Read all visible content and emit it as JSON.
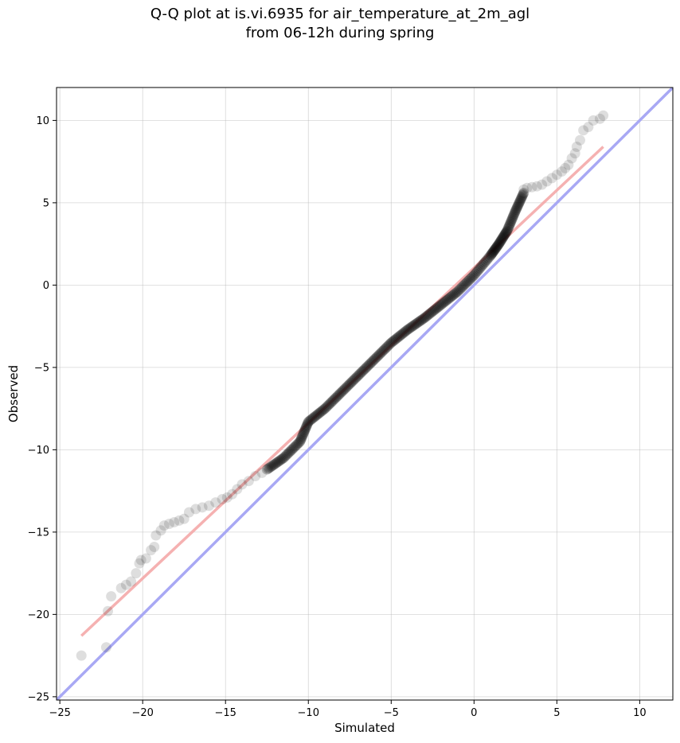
{
  "chart_data": {
    "type": "scatter",
    "title_lines": [
      "Q-Q plot at is.vi.6935 for air_temperature_at_2m_agl",
      "from 06-12h during spring"
    ],
    "xlabel": "Simulated",
    "ylabel": "Observed",
    "xlim": [
      -25.2,
      12
    ],
    "ylim": [
      -25.2,
      12
    ],
    "x_ticks": [
      -25,
      -20,
      -15,
      -10,
      -5,
      0,
      5,
      10
    ],
    "y_ticks": [
      -25,
      -20,
      -15,
      -10,
      -5,
      0,
      5,
      10
    ],
    "x_tick_labels": [
      "−25",
      "−20",
      "−15",
      "−10",
      "−5",
      "0",
      "5",
      "10"
    ],
    "y_tick_labels": [
      "−25",
      "−20",
      "−15",
      "−10",
      "−5",
      "0",
      "5",
      "10"
    ],
    "grid": true,
    "point_color": "#000000",
    "identity_line": {
      "color": "#a8a8f4",
      "from": [
        -25.2,
        -25.2
      ],
      "to": [
        12,
        12
      ]
    },
    "fit_line": {
      "color": "#f4a8a8",
      "from": [
        -23.7,
        -21.3
      ],
      "to": [
        7.8,
        8.4
      ]
    },
    "outer_points": {
      "x": [
        -23.7,
        -22.2,
        -22.1,
        -21.9,
        -21.3,
        -21.0,
        -20.7,
        -20.4,
        -20.2,
        -20.1,
        -19.8,
        -19.5,
        -19.3,
        -19.2,
        -18.9,
        -18.7,
        -18.4,
        -18.1,
        -17.8,
        -17.5,
        -17.2,
        -16.8,
        -16.4,
        -16.0,
        -15.6,
        -15.2,
        -14.9,
        -14.6,
        -14.3,
        -14.0,
        -13.6,
        -13.2,
        -12.8,
        3.0,
        3.2,
        3.5,
        3.8,
        4.1,
        4.4,
        4.7,
        5.0,
        5.3,
        5.5,
        5.7,
        5.9,
        6.1,
        6.2,
        6.4,
        6.6,
        6.9,
        7.2,
        7.6,
        7.8
      ],
      "y": [
        -22.5,
        -22.0,
        -19.8,
        -18.9,
        -18.4,
        -18.2,
        -18.0,
        -17.5,
        -16.9,
        -16.7,
        -16.6,
        -16.1,
        -15.9,
        -15.2,
        -14.9,
        -14.6,
        -14.5,
        -14.4,
        -14.3,
        -14.2,
        -13.8,
        -13.6,
        -13.5,
        -13.4,
        -13.2,
        -13.0,
        -12.9,
        -12.7,
        -12.4,
        -12.1,
        -11.9,
        -11.6,
        -11.4,
        5.8,
        5.9,
        5.95,
        6.0,
        6.1,
        6.3,
        6.5,
        6.7,
        6.9,
        7.1,
        7.3,
        7.7,
        8.0,
        8.4,
        8.8,
        9.4,
        9.6,
        10.0,
        10.1,
        10.3
      ]
    },
    "core_points": {
      "x": [
        -12.5,
        -11.5,
        -10.5,
        -10.0,
        -9.0,
        -8.0,
        -7.0,
        -6.0,
        -5.0,
        -4.0,
        -3.0,
        -2.0,
        -1.0,
        0.0,
        1.0,
        1.5,
        2.0,
        2.5,
        3.0
      ],
      "y": [
        -11.2,
        -10.5,
        -9.5,
        -8.3,
        -7.5,
        -6.5,
        -5.5,
        -4.5,
        -3.5,
        -2.7,
        -2.0,
        -1.2,
        -0.4,
        0.6,
        1.8,
        2.5,
        3.3,
        4.5,
        5.6
      ]
    }
  }
}
